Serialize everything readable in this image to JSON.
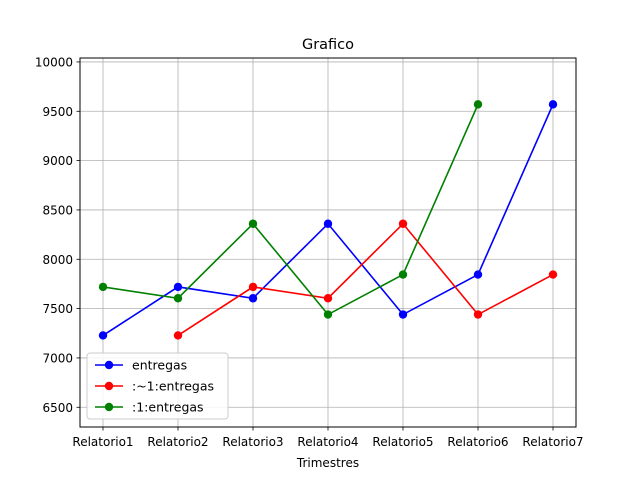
{
  "chart_data": {
    "type": "line",
    "title": "Grafico",
    "xlabel": "Trimestres",
    "ylabel": "",
    "categories": [
      "Relatorio1",
      "Relatorio2",
      "Relatorio3",
      "Relatorio4",
      "Relatorio5",
      "Relatorio6",
      "Relatorio7"
    ],
    "ylim": [
      6300,
      10040
    ],
    "yticks": [
      6500,
      7000,
      7500,
      8000,
      8500,
      9000,
      9500,
      10000
    ],
    "grid": true,
    "legend_position": "lower-left",
    "series": [
      {
        "name": "entregas",
        "color": "#0000ff",
        "values": [
          7228,
          7720,
          7605,
          8360,
          7440,
          7845,
          9570
        ]
      },
      {
        "name": ":~1:entregas",
        "color": "#ff0000",
        "values": [
          null,
          7228,
          7720,
          7605,
          8360,
          7440,
          7845
        ]
      },
      {
        "name": ":1:entregas",
        "color": "#008000",
        "values": [
          7720,
          7605,
          8360,
          7440,
          7845,
          9570,
          null
        ]
      }
    ]
  }
}
